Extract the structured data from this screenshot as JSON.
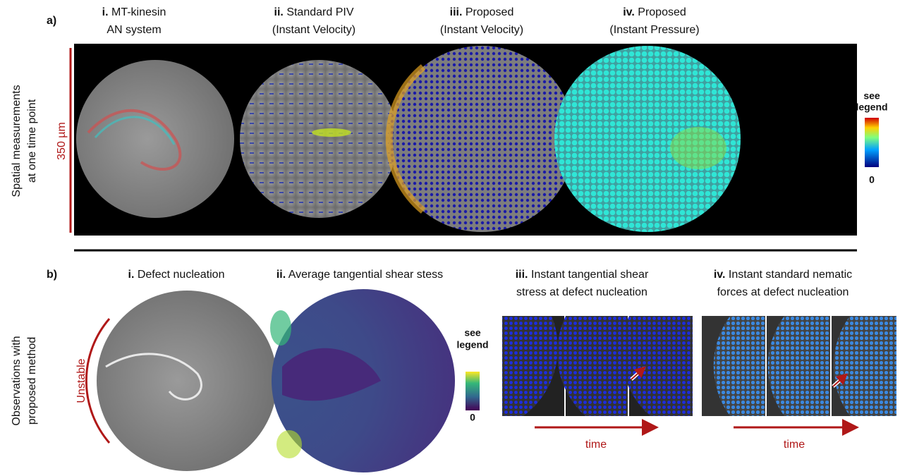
{
  "panel_a": {
    "label": "a)",
    "row_label": [
      "Spatial measurements",
      "at one time point"
    ],
    "scale_bar": "350 µm",
    "columns": [
      {
        "numeral": "i.",
        "lines": [
          "MT-kinesin",
          "AN system"
        ]
      },
      {
        "numeral": "ii.",
        "lines": [
          "Standard PIV",
          "(Instant Velocity)"
        ]
      },
      {
        "numeral": "iii.",
        "lines": [
          "Proposed",
          "(Instant Velocity)"
        ]
      },
      {
        "numeral": "iv.",
        "lines": [
          "Proposed",
          "(Instant Pressure)"
        ]
      }
    ],
    "colorbar": {
      "top": [
        "see",
        "legend"
      ],
      "bottom": "0"
    }
  },
  "panel_b": {
    "label": "b)",
    "row_label": [
      "Observations with",
      "proposed method"
    ],
    "columns": [
      {
        "numeral": "i.",
        "lines": [
          "Defect nucleation"
        ]
      },
      {
        "numeral": "ii.",
        "lines": [
          "Average tangential shear stess"
        ]
      },
      {
        "numeral": "iii.",
        "lines": [
          "Instant tangential shear",
          "stress at defect nucleation"
        ]
      },
      {
        "numeral": "iv.",
        "lines": [
          "Instant standard nematic",
          "forces at defect nucleation"
        ]
      }
    ],
    "unstable_label": "Unstable",
    "colorbar": {
      "top": [
        "see",
        "legend"
      ],
      "bottom": "0"
    },
    "time_labels": [
      "time",
      "time"
    ]
  }
}
